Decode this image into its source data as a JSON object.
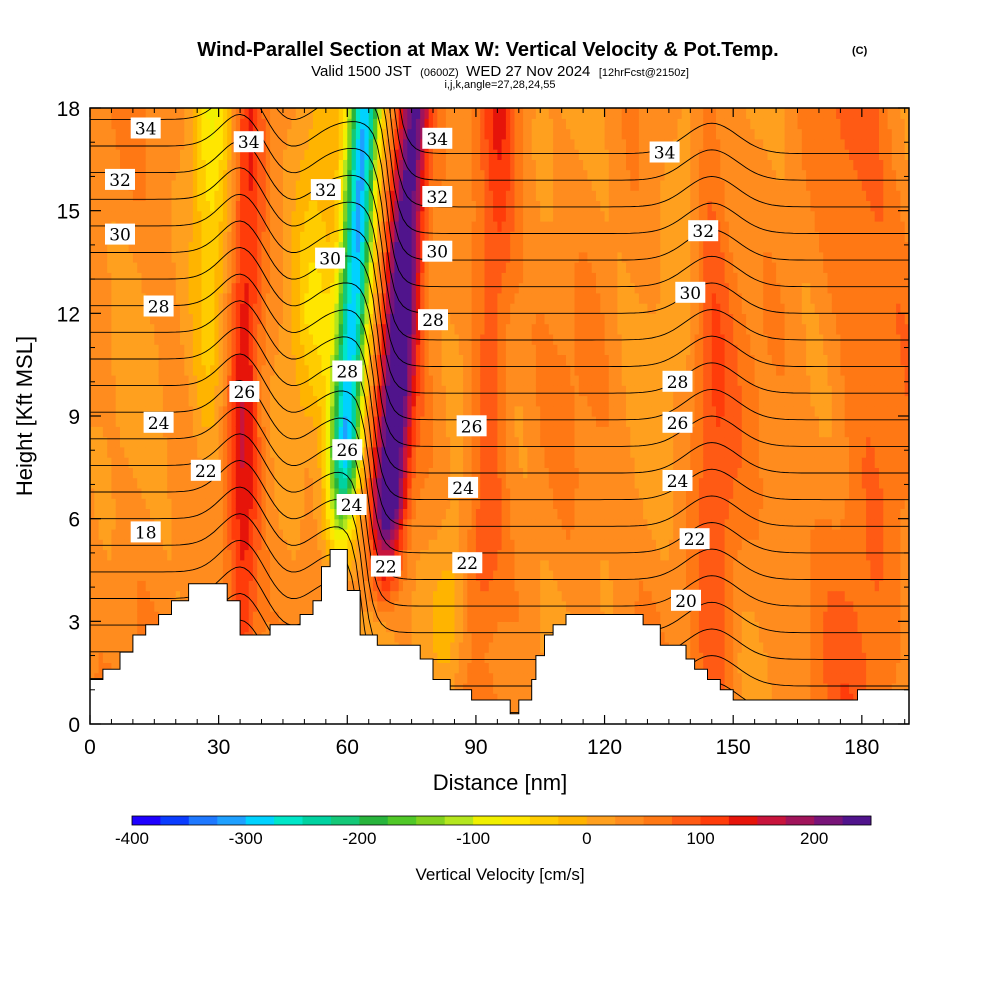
{
  "chart_data": {
    "type": "heatmap",
    "title": "Wind-Parallel Section at Max W: Vertical Velocity & Pot.Temp.",
    "title_mark": "(C)",
    "subtitle_parts": [
      "Valid 1500 JST",
      "(0600Z)",
      "WED 27 Nov 2024",
      "[12hrFcst@2150z]"
    ],
    "subtitle2": "i,j,k,angle=27,28,24,55",
    "xlabel": "Distance [nm]",
    "ylabel": "Height [Kft MSL]",
    "xlim": [
      0,
      191
    ],
    "ylim": [
      0,
      18
    ],
    "x_ticks": [
      "0",
      "30",
      "60",
      "90",
      "120",
      "150",
      "180"
    ],
    "x_tick_values": [
      0,
      30,
      60,
      90,
      120,
      150,
      180
    ],
    "y_ticks": [
      "0",
      "3",
      "6",
      "9",
      "12",
      "15",
      "18"
    ],
    "y_tick_values": [
      0,
      3,
      6,
      9,
      12,
      15,
      18
    ],
    "colorbar": {
      "label": "Vertical Velocity [cm/s]",
      "min": -400,
      "max": 250,
      "step": 25,
      "ticks": [
        "-400",
        "-300",
        "-200",
        "-100",
        "0",
        "100",
        "200"
      ],
      "tick_values": [
        -400,
        -300,
        -200,
        -100,
        0,
        100,
        200
      ],
      "colors": [
        "#1e00ff",
        "#0a3cff",
        "#1e78ff",
        "#1ea0ff",
        "#00d2ff",
        "#00e6c8",
        "#00d2a0",
        "#14c878",
        "#28b43c",
        "#50c828",
        "#82d21e",
        "#b4e61e",
        "#f0f000",
        "#ffe600",
        "#ffcc00",
        "#ffb400",
        "#ffa01e",
        "#ff8c1e",
        "#ff7814",
        "#ff5a14",
        "#ff3c0a",
        "#e6140a",
        "#c8143c",
        "#a0145a",
        "#781478",
        "#50148c"
      ]
    },
    "updrafts": [
      {
        "x": 36,
        "peak_cm_s": 95
      },
      {
        "x": 71,
        "peak_cm_s": 225
      },
      {
        "x": 93,
        "peak_cm_s": 70
      },
      {
        "x": 145,
        "peak_cm_s": 60
      }
    ],
    "downdrafts": [
      {
        "x": 60,
        "peak_cm_s": -330
      },
      {
        "x": 28,
        "peak_cm_s": -90
      }
    ],
    "theta_contour_labels": [
      {
        "text": "34",
        "x": 13,
        "y": 17.4
      },
      {
        "text": "32",
        "x": 7,
        "y": 15.9
      },
      {
        "text": "30",
        "x": 7,
        "y": 14.3
      },
      {
        "text": "28",
        "x": 16,
        "y": 12.2
      },
      {
        "text": "24",
        "x": 16,
        "y": 8.8
      },
      {
        "text": "18",
        "x": 13,
        "y": 5.6
      },
      {
        "text": "22",
        "x": 27,
        "y": 7.4
      },
      {
        "text": "26",
        "x": 36,
        "y": 9.7
      },
      {
        "text": "34",
        "x": 37,
        "y": 17.0
      },
      {
        "text": "32",
        "x": 55,
        "y": 15.6
      },
      {
        "text": "30",
        "x": 56,
        "y": 13.6
      },
      {
        "text": "28",
        "x": 60,
        "y": 10.3
      },
      {
        "text": "26",
        "x": 60,
        "y": 8.0
      },
      {
        "text": "24",
        "x": 61,
        "y": 6.4
      },
      {
        "text": "22",
        "x": 69,
        "y": 4.6
      },
      {
        "text": "34",
        "x": 81,
        "y": 17.1
      },
      {
        "text": "32",
        "x": 81,
        "y": 15.4
      },
      {
        "text": "30",
        "x": 81,
        "y": 13.8
      },
      {
        "text": "28",
        "x": 80,
        "y": 11.8
      },
      {
        "text": "26",
        "x": 89,
        "y": 8.7
      },
      {
        "text": "24",
        "x": 87,
        "y": 6.9
      },
      {
        "text": "22",
        "x": 88,
        "y": 4.7
      },
      {
        "text": "34",
        "x": 134,
        "y": 16.7
      },
      {
        "text": "32",
        "x": 143,
        "y": 14.4
      },
      {
        "text": "30",
        "x": 140,
        "y": 12.6
      },
      {
        "text": "28",
        "x": 137,
        "y": 10.0
      },
      {
        "text": "26",
        "x": 137,
        "y": 8.8
      },
      {
        "text": "24",
        "x": 137,
        "y": 7.1
      },
      {
        "text": "22",
        "x": 141,
        "y": 5.4
      },
      {
        "text": "20",
        "x": 139,
        "y": 3.6
      }
    ],
    "terrain_kft": [
      [
        0,
        1.3
      ],
      [
        3,
        1.3
      ],
      [
        3,
        1.6
      ],
      [
        7,
        1.6
      ],
      [
        7,
        2.1
      ],
      [
        10,
        2.1
      ],
      [
        10,
        2.6
      ],
      [
        13,
        2.6
      ],
      [
        13,
        2.9
      ],
      [
        16,
        2.9
      ],
      [
        16,
        3.2
      ],
      [
        19,
        3.2
      ],
      [
        19,
        3.6
      ],
      [
        23,
        3.6
      ],
      [
        23,
        4.1
      ],
      [
        32,
        4.1
      ],
      [
        32,
        3.6
      ],
      [
        35,
        3.6
      ],
      [
        35,
        2.6
      ],
      [
        42,
        2.6
      ],
      [
        42,
        2.9
      ],
      [
        49,
        2.9
      ],
      [
        49,
        3.2
      ],
      [
        52,
        3.2
      ],
      [
        52,
        3.6
      ],
      [
        54,
        3.6
      ],
      [
        54,
        4.6
      ],
      [
        56,
        4.6
      ],
      [
        56,
        5.1
      ],
      [
        60,
        5.1
      ],
      [
        60,
        3.9
      ],
      [
        63,
        3.9
      ],
      [
        63,
        2.6
      ],
      [
        67,
        2.6
      ],
      [
        67,
        2.3
      ],
      [
        77,
        2.3
      ],
      [
        77,
        1.9
      ],
      [
        80,
        1.9
      ],
      [
        80,
        1.3
      ],
      [
        84,
        1.3
      ],
      [
        84,
        1.0
      ],
      [
        89,
        1.0
      ],
      [
        89,
        0.7
      ],
      [
        98,
        0.7
      ],
      [
        98,
        0.3
      ],
      [
        100,
        0.3
      ],
      [
        100,
        0.7
      ],
      [
        103,
        0.7
      ],
      [
        103,
        1.3
      ],
      [
        104,
        1.3
      ],
      [
        104,
        2.0
      ],
      [
        106,
        2.0
      ],
      [
        106,
        2.6
      ],
      [
        108,
        2.6
      ],
      [
        108,
        2.9
      ],
      [
        111,
        2.9
      ],
      [
        111,
        3.2
      ],
      [
        129,
        3.2
      ],
      [
        129,
        2.9
      ],
      [
        133,
        2.9
      ],
      [
        133,
        2.3
      ],
      [
        139,
        2.3
      ],
      [
        139,
        1.9
      ],
      [
        141,
        1.9
      ],
      [
        141,
        1.6
      ],
      [
        144,
        1.6
      ],
      [
        144,
        1.3
      ],
      [
        147,
        1.3
      ],
      [
        147,
        1.0
      ],
      [
        150,
        1.0
      ],
      [
        150,
        0.7
      ],
      [
        179,
        0.7
      ],
      [
        179,
        1.0
      ],
      [
        191,
        1.0
      ]
    ]
  }
}
